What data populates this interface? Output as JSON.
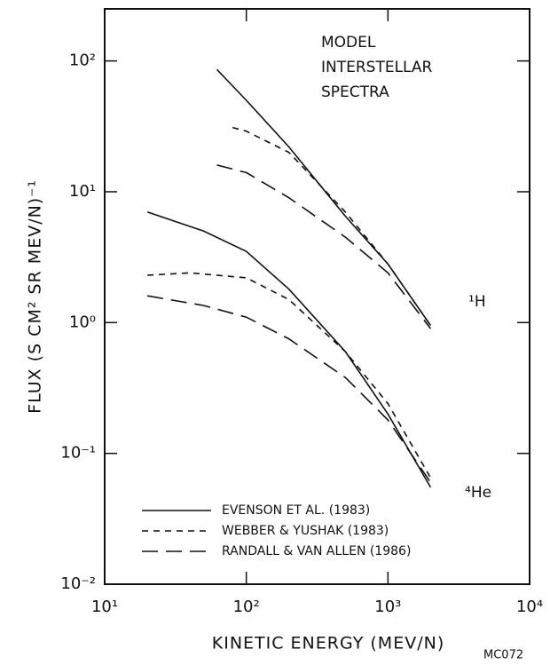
{
  "chart_data": {
    "type": "line",
    "x_label": "KINETIC ENERGY (MEV/N)",
    "y_label": "FLUX (S CM² SR MEV/N)⁻¹",
    "annotations": [
      "MODEL",
      "INTERSTELLAR",
      "SPECTRA",
      "¹H",
      "⁴He",
      "MC072"
    ],
    "xscale": "log",
    "yscale": "log",
    "xlim": [
      10,
      10000
    ],
    "ylim": [
      0.01,
      250
    ],
    "xticks": [
      {
        "value": 10,
        "label": "10¹"
      },
      {
        "value": 100,
        "label": "10²"
      },
      {
        "value": 1000,
        "label": "10³"
      },
      {
        "value": 10000,
        "label": "10⁴"
      }
    ],
    "yticks": [
      {
        "value": 0.01,
        "label": "10⁻²"
      },
      {
        "value": 0.1,
        "label": "10⁻¹"
      },
      {
        "value": 1,
        "label": "10⁰"
      },
      {
        "value": 10,
        "label": "10¹"
      },
      {
        "value": 100,
        "label": "10²"
      }
    ],
    "legend": "lower left",
    "series": [
      {
        "name": "EVENSON ET AL. (1983)",
        "color": "#111111",
        "dash": "none",
        "curves": [
          {
            "x": [
              62,
              100,
              200,
              500,
              1000,
              2000
            ],
            "values": [
              86,
              50,
              22,
              6.5,
              2.8,
              0.95
            ]
          },
          {
            "x": [
              20,
              50,
              100,
              200,
              500,
              1000,
              2000
            ],
            "values": [
              7,
              5,
              3.5,
              1.8,
              0.6,
              0.2,
              0.055
            ]
          }
        ]
      },
      {
        "name": "WEBBER & YUSHAK (1983)",
        "color": "#111111",
        "dash": "7,6",
        "curves": [
          {
            "x": [
              80,
              100,
              200,
              500,
              1000,
              2000
            ],
            "values": [
              31,
              29,
              20,
              7,
              2.8,
              0.95
            ]
          },
          {
            "x": [
              20,
              40,
              100,
              200,
              500,
              1000,
              2000
            ],
            "values": [
              2.3,
              2.4,
              2.2,
              1.5,
              0.6,
              0.24,
              0.065
            ]
          }
        ]
      },
      {
        "name": "RANDALL & VAN ALLEN (1986)",
        "color": "#111111",
        "dash": "18,9",
        "curves": [
          {
            "x": [
              62,
              100,
              200,
              500,
              1000,
              2000
            ],
            "values": [
              16,
              14,
              9,
              4.5,
              2.4,
              0.9
            ]
          },
          {
            "x": [
              20,
              50,
              100,
              200,
              500,
              1000,
              2000
            ],
            "values": [
              1.6,
              1.35,
              1.1,
              0.75,
              0.38,
              0.18,
              0.06
            ]
          }
        ]
      }
    ]
  }
}
